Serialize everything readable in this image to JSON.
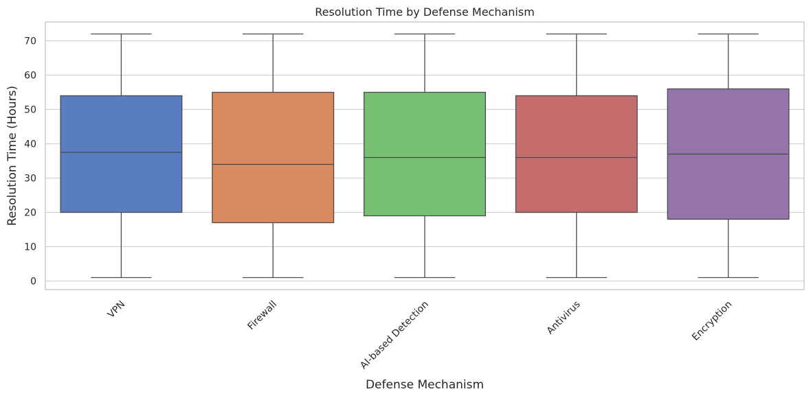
{
  "chart_data": {
    "type": "box",
    "title": "Resolution Time by Defense Mechanism",
    "xlabel": "Defense Mechanism",
    "ylabel": "Resolution Time (Hours)",
    "ylim": [
      -2.5,
      75.5
    ],
    "yticks": [
      0,
      10,
      20,
      30,
      40,
      50,
      60,
      70
    ],
    "grid": true,
    "categories": [
      "VPN",
      "Firewall",
      "AI-based Detection",
      "Antivirus",
      "Encryption"
    ],
    "boxes": [
      {
        "category": "VPN",
        "min": 1,
        "q1": 20,
        "median": 37.5,
        "q3": 54,
        "max": 72,
        "color": "#5a7dc1"
      },
      {
        "category": "Firewall",
        "min": 1,
        "q1": 17,
        "median": 34,
        "q3": 55,
        "max": 72,
        "color": "#d98a5f"
      },
      {
        "category": "AI-based Detection",
        "min": 1,
        "q1": 19,
        "median": 36,
        "q3": 55,
        "max": 72,
        "color": "#76c172"
      },
      {
        "category": "Antivirus",
        "min": 1,
        "q1": 20,
        "median": 36,
        "q3": 54,
        "max": 72,
        "color": "#c56c6c"
      },
      {
        "category": "Encryption",
        "min": 1,
        "q1": 18,
        "median": 37,
        "q3": 56,
        "max": 72,
        "color": "#9474ab"
      }
    ]
  }
}
